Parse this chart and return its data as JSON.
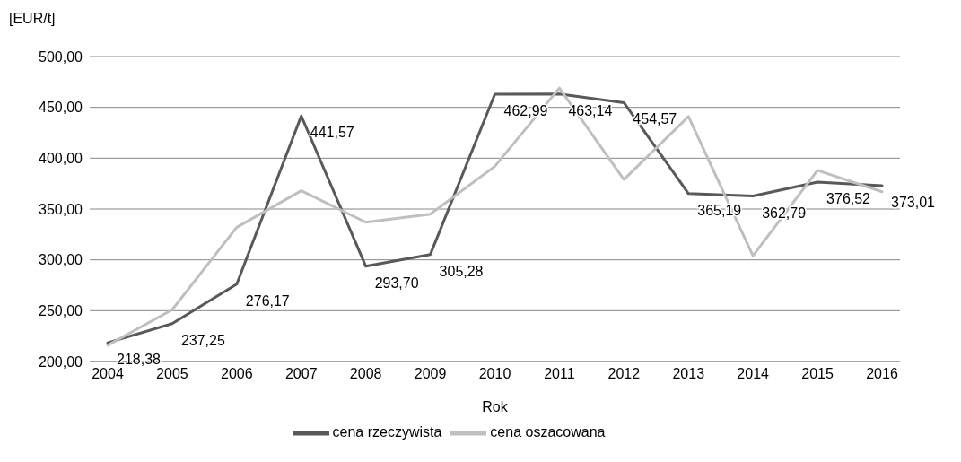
{
  "chart_data": {
    "type": "line",
    "ylabel": "[EUR/t]",
    "xlabel": "Rok",
    "categories": [
      "2004",
      "2005",
      "2006",
      "2007",
      "2008",
      "2009",
      "2010",
      "2011",
      "2012",
      "2013",
      "2014",
      "2015",
      "2016"
    ],
    "series": [
      {
        "name": "cena rzeczywista",
        "color": "#595959",
        "values": [
          218.38,
          237.25,
          276.17,
          441.57,
          293.7,
          305.28,
          462.99,
          463.14,
          454.57,
          365.19,
          362.79,
          376.52,
          373.01
        ],
        "value_labels": [
          "218,38",
          "237,25",
          "276,17",
          "441,57",
          "293,70",
          "305,28",
          "462,99",
          "463,14",
          "454,57",
          "365,19",
          "362,79",
          "376,52",
          "373,01"
        ]
      },
      {
        "name": "cena oszacowana",
        "color": "#bfbfbf",
        "values": [
          216,
          251,
          332,
          368,
          337,
          345,
          392,
          469,
          379,
          441,
          304,
          388,
          367
        ]
      }
    ],
    "ylim": [
      200,
      500
    ],
    "yticks": [
      {
        "value": 200,
        "label": "200,00"
      },
      {
        "value": 250,
        "label": "250,00"
      },
      {
        "value": 300,
        "label": "300,00"
      },
      {
        "value": 350,
        "label": "350,00"
      },
      {
        "value": 400,
        "label": "400,00"
      },
      {
        "value": 450,
        "label": "450,00"
      },
      {
        "value": 500,
        "label": "500,00"
      }
    ],
    "grid": "y",
    "legend": "bottom",
    "marker": "none",
    "line_style": "solid"
  }
}
